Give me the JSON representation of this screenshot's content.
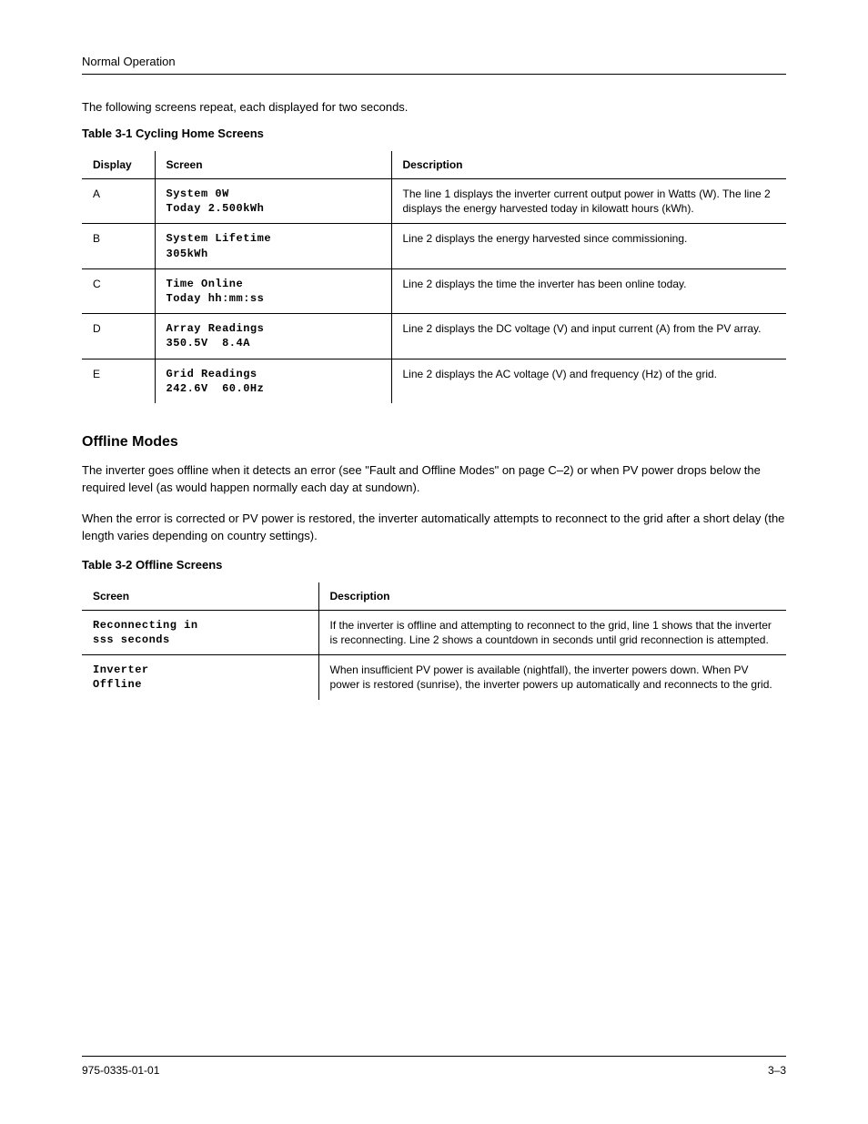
{
  "header": {
    "running": "Normal Operation"
  },
  "intro_line": "The following screens repeat, each displayed for two seconds.",
  "table1": {
    "caption": "Table 3-1 Cycling Home Screens",
    "columns": [
      "Display",
      "Screen",
      "Description"
    ],
    "rows": [
      {
        "display": "A",
        "lcd": "System 0W\nToday 2.500kWh",
        "desc": "The line 1 displays the inverter current output power in Watts (W). The line 2 displays the energy harvested today in kilowatt hours (kWh)."
      },
      {
        "display": "B",
        "lcd": "System Lifetime\n305kWh",
        "desc": "Line 2 displays the energy harvested since commissioning."
      },
      {
        "display": "C",
        "lcd": "Time Online\nToday hh:mm:ss",
        "desc": "Line 2 displays the time the inverter has been online today."
      },
      {
        "display": "D",
        "lcd": "Array Readings\n350.5V  8.4A",
        "desc": "Line 2 displays the DC voltage (V) and input current (A) from the PV array."
      },
      {
        "display": "E",
        "lcd": "Grid Readings\n242.6V  60.0Hz",
        "desc": "Line 2 displays the AC voltage (V) and frequency (Hz) of the grid."
      }
    ]
  },
  "offline_section": {
    "heading": "Offline Modes",
    "paragraphs": [
      "The inverter goes offline when it detects an error (see \"Fault and Offline Modes\" on page C–2) or when PV power drops below the required level (as would happen normally each day at sundown).",
      "When the error is corrected or PV power is restored, the inverter automatically attempts to reconnect to the grid after a short delay (the length varies depending on country settings)."
    ]
  },
  "table2": {
    "caption": "Table 3-2 Offline Screens",
    "columns": [
      "Screen",
      "Description"
    ],
    "rows": [
      {
        "lcd": "Reconnecting in\nsss seconds",
        "desc": "If the inverter is offline and attempting to reconnect to the grid, line 1 shows that the inverter is reconnecting. Line 2 shows a countdown in seconds until grid reconnection is attempted."
      },
      {
        "lcd": "Inverter\nOffline",
        "desc": "When insufficient PV power is available (nightfall), the inverter powers down. When PV power is restored (sunrise), the inverter powers up automatically and reconnects to the grid."
      }
    ]
  },
  "footer": {
    "left": "975-0335-01-01",
    "right": "3–3"
  }
}
